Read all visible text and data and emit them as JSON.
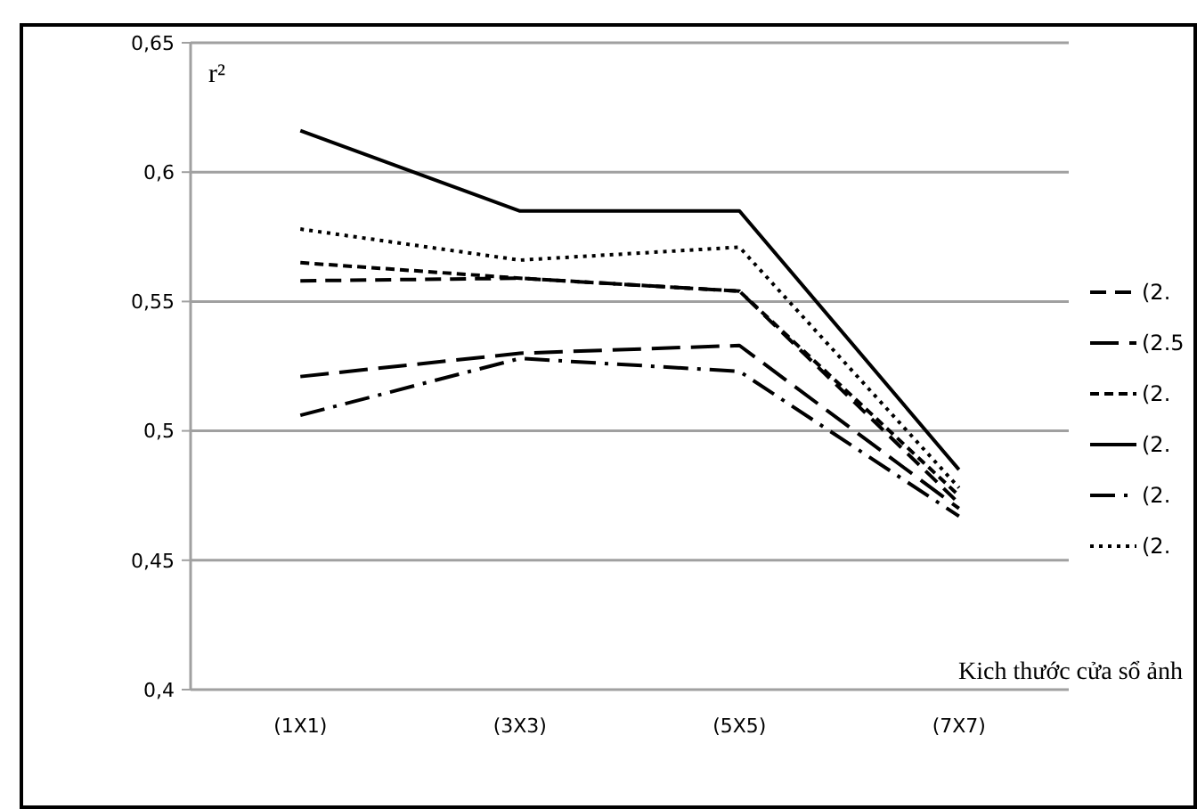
{
  "chart_data": {
    "type": "line",
    "ylabel": "r²",
    "xlabel": "Kich thước cửa sổ ảnh",
    "categories": [
      "(1X1)",
      "(3X3)",
      "(5X5)",
      "(7X7)"
    ],
    "ylim": [
      0.4,
      0.65
    ],
    "yticks": [
      {
        "value": 0.4,
        "label": "0,4"
      },
      {
        "value": 0.45,
        "label": "0,45"
      },
      {
        "value": 0.5,
        "label": "0,5"
      },
      {
        "value": 0.55,
        "label": "0,55"
      },
      {
        "value": 0.6,
        "label": "0,6"
      },
      {
        "value": 0.65,
        "label": "0,65"
      }
    ],
    "grid": "y",
    "legend": "right",
    "marker": "none",
    "series": [
      {
        "name": "(2.",
        "color": "#000000",
        "line_style": "dashed",
        "values": [
          0.558,
          0.559,
          0.554,
          0.472
        ]
      },
      {
        "name": "(2.5",
        "color": "#000000",
        "line_style": "longdash",
        "values": [
          0.521,
          0.53,
          0.533,
          0.47
        ]
      },
      {
        "name": "(2.",
        "color": "#000000",
        "line_style": "shortdash",
        "values": [
          0.565,
          0.559,
          0.554,
          0.475
        ]
      },
      {
        "name": "(2.",
        "color": "#000000",
        "line_style": "solid",
        "values": [
          0.616,
          0.585,
          0.585,
          0.485
        ]
      },
      {
        "name": "(2.",
        "color": "#000000",
        "line_style": "dashdot",
        "values": [
          0.506,
          0.528,
          0.523,
          0.467
        ]
      },
      {
        "name": "(2.",
        "color": "#000000",
        "line_style": "dotted",
        "values": [
          0.578,
          0.566,
          0.571,
          0.478
        ]
      }
    ]
  }
}
